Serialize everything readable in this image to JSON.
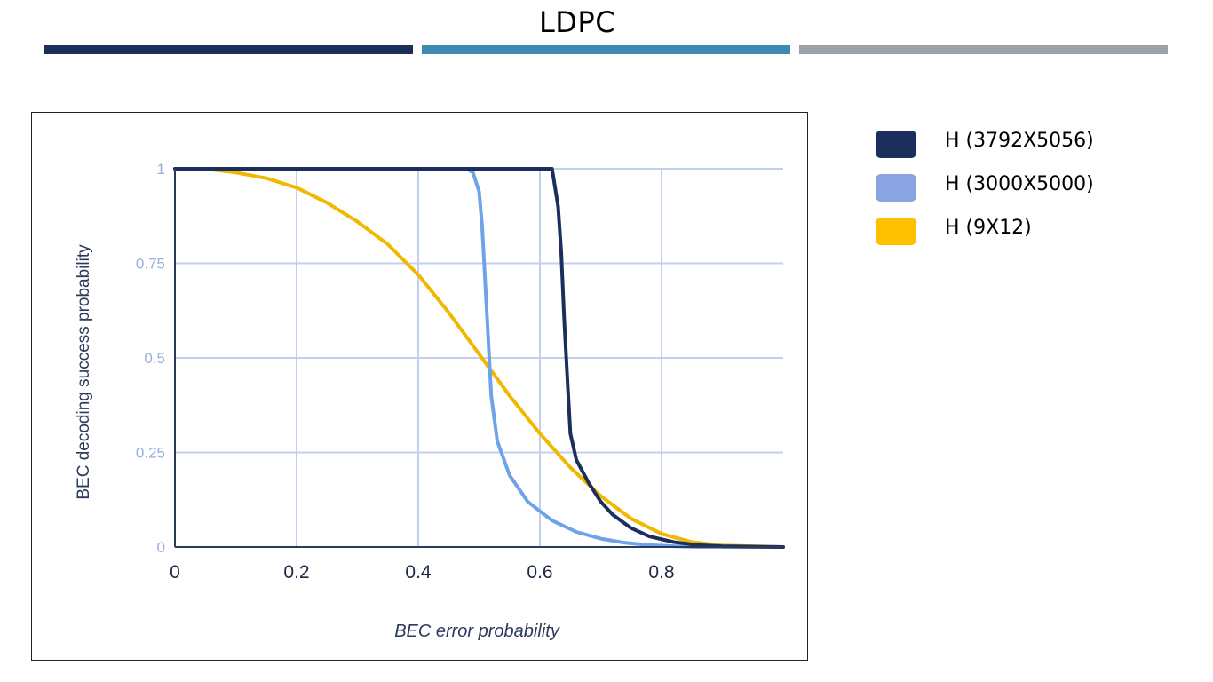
{
  "slide": {
    "title": "LDPC",
    "bars": [
      "#1c2f5c",
      "#3d8bb4",
      "#9da2a8"
    ]
  },
  "chart_data": {
    "type": "line",
    "title": "",
    "xlabel": "BEC error probability",
    "ylabel": "BEC decoding success probability",
    "xlim": [
      0,
      1
    ],
    "ylim": [
      0,
      1
    ],
    "x_ticks": [
      "0",
      "0.2",
      "0.4",
      "0.6",
      "0.8"
    ],
    "y_ticks": [
      "1",
      "0.75",
      "0.5",
      "0.25",
      "0"
    ],
    "grid": true,
    "legend_position": "right",
    "series": [
      {
        "name": "H (3792X5056)",
        "color": "#1c2f5c",
        "x": [
          0,
          0.5,
          0.6,
          0.62,
          0.63,
          0.635,
          0.64,
          0.645,
          0.65,
          0.66,
          0.68,
          0.7,
          0.72,
          0.75,
          0.78,
          0.82,
          0.86,
          0.9,
          1.0
        ],
        "y": [
          1,
          1,
          1,
          1,
          0.9,
          0.78,
          0.6,
          0.45,
          0.3,
          0.23,
          0.17,
          0.12,
          0.085,
          0.05,
          0.028,
          0.013,
          0.005,
          0.002,
          0.0
        ]
      },
      {
        "name": "H (3000X5000)",
        "color": "#6fa3e8",
        "x": [
          0,
          0.48,
          0.49,
          0.5,
          0.505,
          0.51,
          0.515,
          0.52,
          0.53,
          0.55,
          0.58,
          0.62,
          0.66,
          0.7,
          0.74,
          0.78,
          0.82,
          0.86,
          1.0
        ],
        "y": [
          1,
          1,
          0.99,
          0.94,
          0.85,
          0.7,
          0.55,
          0.4,
          0.28,
          0.19,
          0.12,
          0.07,
          0.04,
          0.022,
          0.011,
          0.005,
          0.002,
          0.0,
          0.0
        ]
      },
      {
        "name": "H (9X12)",
        "color": "#f0b800",
        "x": [
          0,
          0.05,
          0.1,
          0.15,
          0.2,
          0.25,
          0.3,
          0.35,
          0.4,
          0.45,
          0.5,
          0.55,
          0.6,
          0.65,
          0.7,
          0.75,
          0.8,
          0.85,
          0.9,
          1.0
        ],
        "y": [
          1,
          1,
          0.99,
          0.975,
          0.95,
          0.91,
          0.86,
          0.8,
          0.72,
          0.62,
          0.51,
          0.4,
          0.3,
          0.21,
          0.135,
          0.075,
          0.035,
          0.013,
          0.004,
          0.0
        ]
      }
    ]
  },
  "legend": {
    "items": [
      {
        "label": "H (3792X5056)",
        "color": "#1c2f5c"
      },
      {
        "label": "H (3000X5000)",
        "color": "#89a4e0"
      },
      {
        "label": "H (9X12)",
        "color": "#ffc000"
      }
    ]
  }
}
